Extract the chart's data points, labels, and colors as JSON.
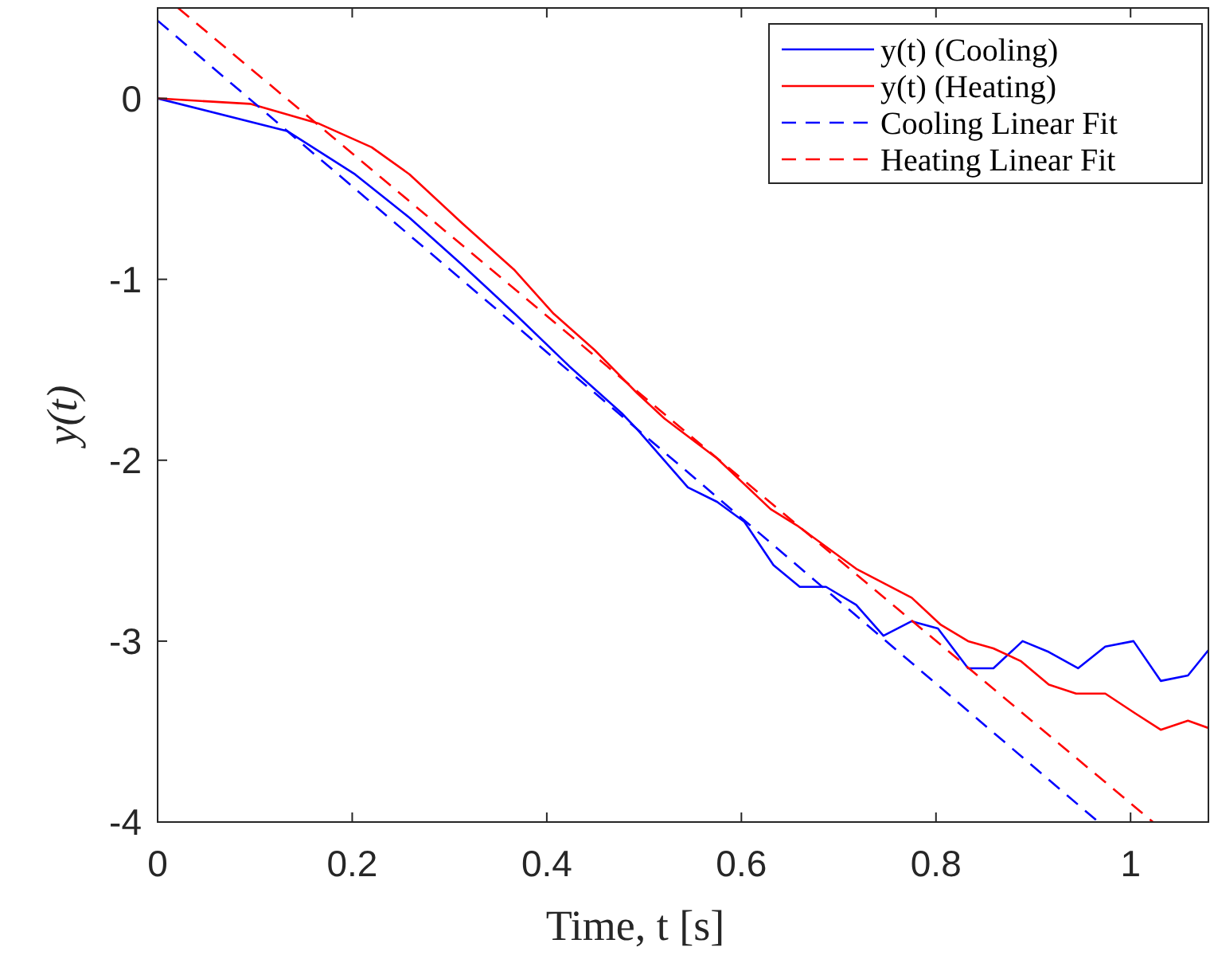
{
  "chart_data": {
    "type": "line",
    "xlabel": "Time, t [s]",
    "ylabel": "y(t)",
    "xlim": [
      0,
      1.08
    ],
    "ylim": [
      -4,
      0.5
    ],
    "xticks": [
      0,
      0.2,
      0.4,
      0.6,
      0.8,
      1
    ],
    "yticks": [
      -4,
      -3,
      -2,
      -1,
      0
    ],
    "grid": false,
    "legend": "top right",
    "series": [
      {
        "name": "y(t) (Cooling)",
        "color": "#0000ff",
        "line_style": "solid",
        "x": [
          0,
          0.133,
          0.203,
          0.259,
          0.313,
          0.367,
          0.423,
          0.477,
          0.493,
          0.545,
          0.575,
          0.603,
          0.633,
          0.66,
          0.687,
          0.718,
          0.746,
          0.775,
          0.802,
          0.833,
          0.859,
          0.889,
          0.916,
          0.946,
          0.974,
          1.003,
          1.031,
          1.059,
          1.08
        ],
        "values": [
          0,
          -0.18,
          -0.42,
          -0.66,
          -0.92,
          -1.19,
          -1.48,
          -1.74,
          -1.83,
          -2.15,
          -2.23,
          -2.34,
          -2.58,
          -2.7,
          -2.7,
          -2.8,
          -2.97,
          -2.89,
          -2.93,
          -3.15,
          -3.15,
          -3,
          -3.06,
          -3.15,
          -3.03,
          -3,
          -3.22,
          -3.19,
          -3.05
        ]
      },
      {
        "name": "y(t) (Heating)",
        "color": "#ff0000",
        "line_style": "solid",
        "x": [
          0,
          0.095,
          0.166,
          0.22,
          0.259,
          0.313,
          0.367,
          0.407,
          0.449,
          0.493,
          0.521,
          0.575,
          0.63,
          0.657,
          0.718,
          0.775,
          0.805,
          0.833,
          0.859,
          0.887,
          0.916,
          0.944,
          0.974,
          1.005,
          1.031,
          1.059,
          1.08
        ],
        "values": [
          0,
          -0.03,
          -0.14,
          -0.27,
          -0.42,
          -0.69,
          -0.95,
          -1.19,
          -1.39,
          -1.63,
          -1.77,
          -1.99,
          -2.27,
          -2.36,
          -2.6,
          -2.76,
          -2.91,
          -3,
          -3.04,
          -3.11,
          -3.24,
          -3.29,
          -3.29,
          -3.4,
          -3.49,
          -3.44,
          -3.48
        ]
      },
      {
        "name": "Cooling Linear Fit",
        "color": "#0000ff",
        "line_style": "dashed",
        "x": [
          0,
          0.967
        ],
        "values": [
          0.43,
          -4
        ]
      },
      {
        "name": "Heating Linear Fit",
        "color": "#ff0000",
        "line_style": "dashed",
        "x": [
          0.021,
          1.023
        ],
        "values": [
          0.5,
          -4
        ]
      }
    ]
  }
}
